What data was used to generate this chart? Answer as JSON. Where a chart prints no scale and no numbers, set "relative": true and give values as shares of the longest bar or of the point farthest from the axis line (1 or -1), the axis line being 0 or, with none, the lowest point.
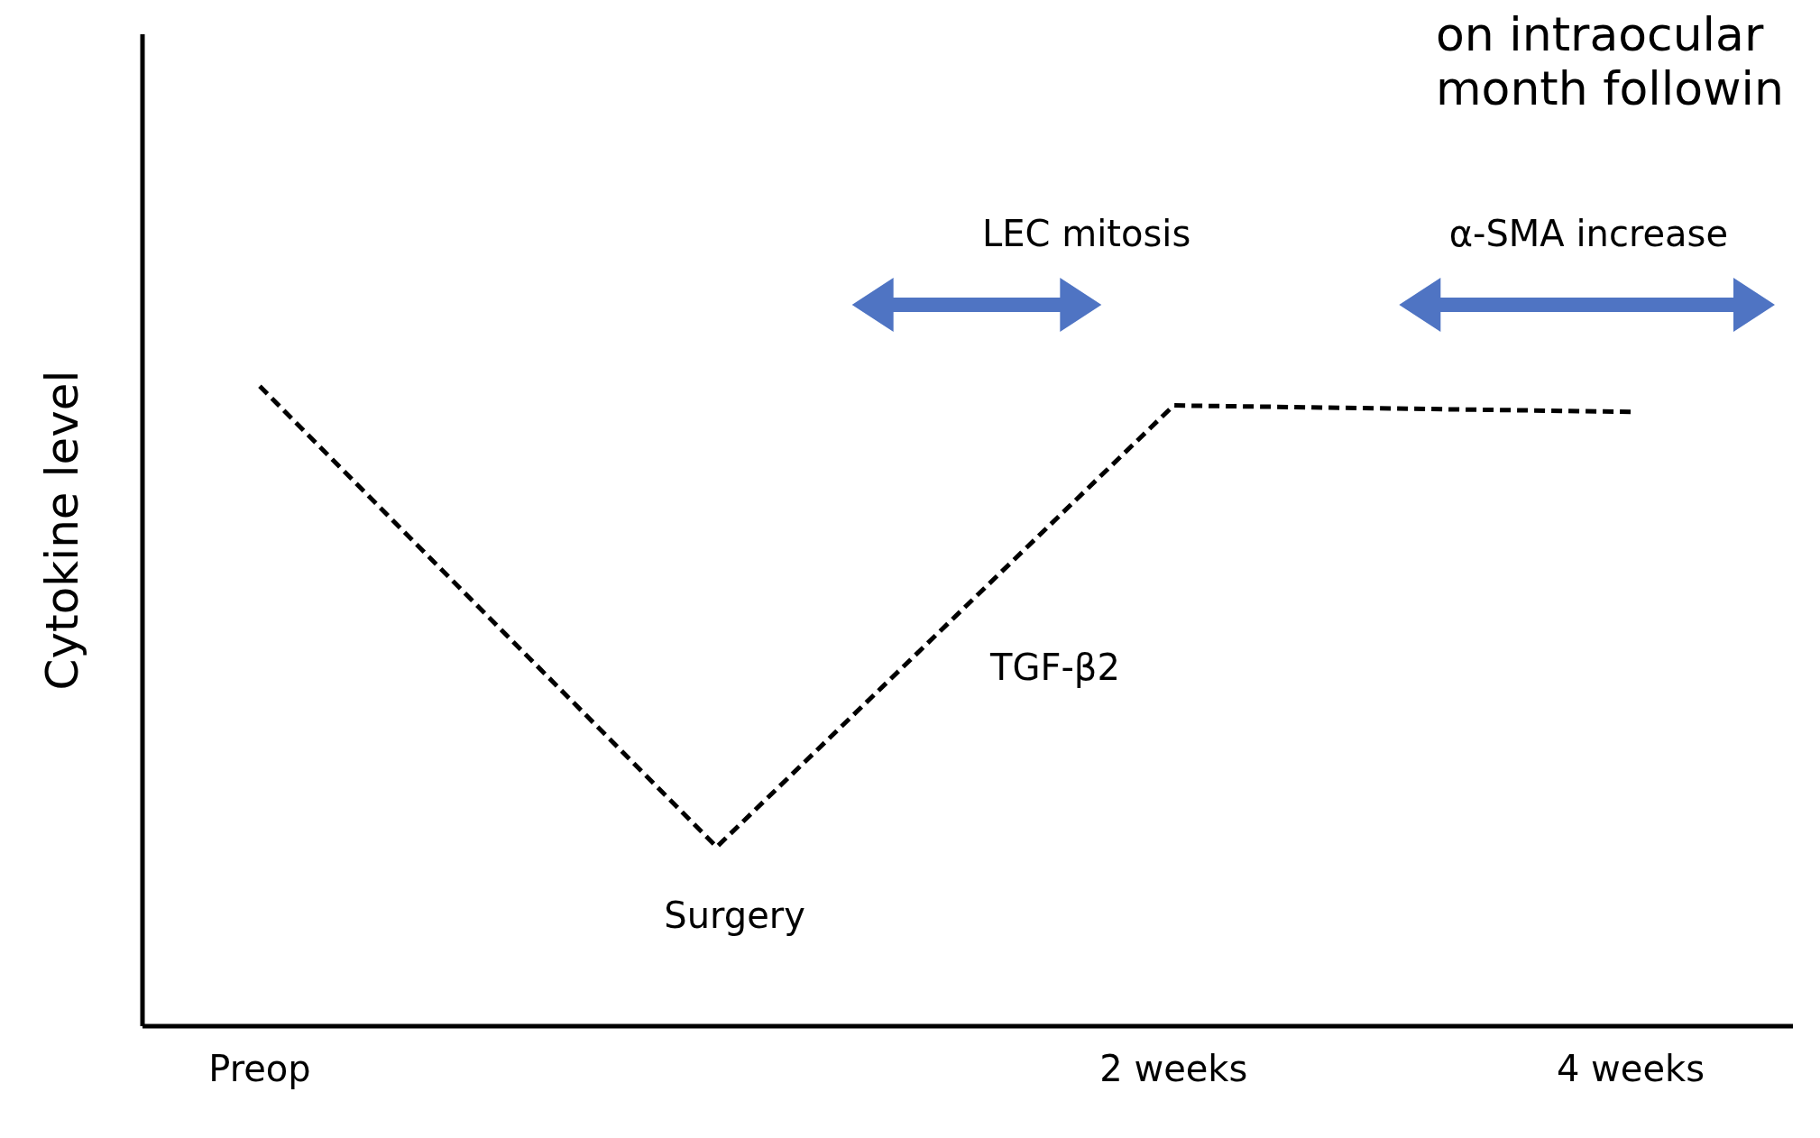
{
  "chart_data": {
    "type": "line",
    "relative": true,
    "ylabel": "Cytokine level",
    "categories": [
      "Preop",
      null,
      "2 weeks",
      "4 weeks"
    ],
    "series": [
      {
        "name": "TGF-β2",
        "color": "#000000",
        "values": [
          1,
          0.28,
          0.97,
          0.96
        ]
      }
    ],
    "line_style": "dashed",
    "marker": "none",
    "grid": false,
    "legend": false,
    "annotations": [
      "on intraocular",
      "month followin",
      "LEC mitosis",
      "α-SMA increase",
      "Surgery"
    ]
  }
}
